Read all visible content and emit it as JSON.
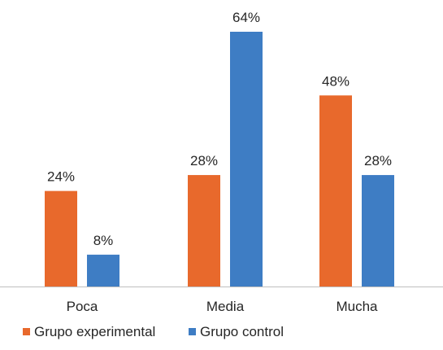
{
  "chart_data": {
    "type": "bar",
    "categories": [
      "Poca",
      "Media",
      "Mucha"
    ],
    "series": [
      {
        "name": "Grupo experimental",
        "values": [
          24,
          28,
          48
        ],
        "color": "#E8692C"
      },
      {
        "name": "Grupo control",
        "values": [
          8,
          64,
          28
        ],
        "color": "#3E7DC4"
      }
    ],
    "value_suffix": "%",
    "ylim": [
      0,
      64
    ],
    "grid": false,
    "legend_position": "bottom-left",
    "title": "",
    "xlabel": "",
    "ylabel": ""
  }
}
